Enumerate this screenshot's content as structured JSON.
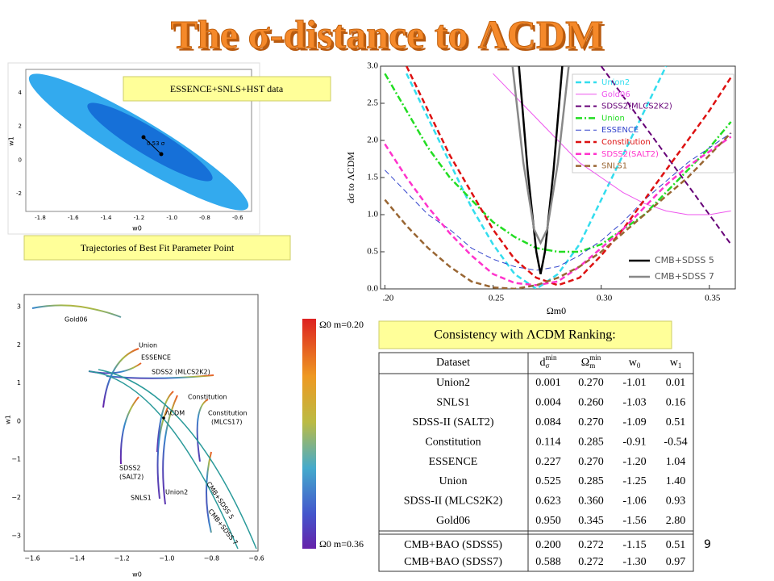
{
  "title": "The σ-distance to ΛCDM",
  "labels": {
    "essence_box": "ESSENCE+SNLS+HST data",
    "trajectories_box": "Trajectories of Best Fit Parameter Point",
    "ranking_box": "Consistency with ΛCDM Ranking:"
  },
  "page_number": "9",
  "ellipse_plot": {
    "xticks": [
      "-1.8",
      "-1.6",
      "-1.4",
      "-1.2",
      "-1.0",
      "-0.8",
      "-0.6"
    ],
    "yticks": [
      "4",
      "2",
      "0",
      "-2"
    ],
    "xlabel": "w0",
    "ylabel": "w1",
    "annotation": "0.53 σ"
  },
  "chart_data": {
    "type": "line",
    "xlabel": "Ωm0",
    "ylabel": "dσ to ΛCDM",
    "x": [
      0.2,
      0.21,
      0.22,
      0.23,
      0.24,
      0.25,
      0.26,
      0.27,
      0.28,
      0.29,
      0.3,
      0.31,
      0.32,
      0.33,
      0.34,
      0.35,
      0.36
    ],
    "xlim": [
      0.198,
      0.362
    ],
    "ylim": [
      0,
      3
    ],
    "xticks": [
      {
        "value": 0.2,
        "label": ".20"
      },
      {
        "value": 0.25,
        "label": "0.25"
      },
      {
        "value": 0.3,
        "label": "0.30"
      },
      {
        "value": 0.35,
        "label": "0.35"
      }
    ],
    "yticks": [
      {
        "value": 0,
        "label": "0.0"
      },
      {
        "value": 0.5,
        "label": "0.5"
      },
      {
        "value": 1,
        "label": "1.0"
      },
      {
        "value": 1.5,
        "label": "1.5"
      },
      {
        "value": 2,
        "label": "2.0"
      },
      {
        "value": 2.5,
        "label": "2.5"
      },
      {
        "value": 3,
        "label": "3.0"
      }
    ],
    "series": [
      {
        "name": "Union2",
        "color": "#33ddee",
        "style": "dashed",
        "linewidth": 2.5,
        "values": [
          null,
          2.9,
          2.3,
          1.7,
          1.1,
          0.6,
          0.2,
          0.0,
          0.2,
          0.6,
          1.2,
          1.8,
          2.4,
          3.0,
          null,
          null,
          null
        ]
      },
      {
        "name": "Gold06",
        "color": "#ee55ee",
        "style": "solid",
        "linewidth": 1,
        "values": [
          null,
          null,
          null,
          null,
          null,
          2.9,
          2.6,
          2.3,
          2.0,
          1.7,
          1.5,
          1.3,
          1.15,
          1.05,
          1.0,
          1.0,
          1.05
        ]
      },
      {
        "name": "SDSS2(MLCS2K2)",
        "color": "#660077",
        "style": "dashed",
        "linewidth": 2,
        "values": [
          null,
          null,
          null,
          null,
          null,
          null,
          null,
          null,
          null,
          null,
          3.0,
          2.6,
          2.2,
          1.8,
          1.4,
          1.0,
          0.6
        ]
      },
      {
        "name": "Union",
        "color": "#22dd22",
        "style": "dashdot",
        "linewidth": 2.5,
        "values": [
          2.9,
          2.4,
          1.9,
          1.5,
          1.2,
          0.9,
          0.7,
          0.55,
          0.5,
          0.5,
          0.6,
          0.8,
          1.0,
          1.3,
          1.6,
          1.9,
          2.25
        ]
      },
      {
        "name": "ESSENCE",
        "color": "#3344cc",
        "style": "dashed",
        "linewidth": 1,
        "values": [
          1.6,
          1.3,
          1.0,
          0.8,
          0.55,
          0.4,
          0.3,
          0.25,
          0.3,
          0.45,
          0.65,
          0.9,
          1.2,
          1.45,
          1.7,
          1.9,
          2.1
        ]
      },
      {
        "name": "Constitution",
        "color": "#dd1111",
        "style": "dashed",
        "linewidth": 2.5,
        "values": [
          null,
          3.0,
          2.4,
          1.8,
          1.3,
          0.8,
          0.4,
          0.15,
          0.05,
          0.15,
          0.45,
          0.8,
          1.2,
          1.6,
          2.0,
          2.4,
          2.85
        ]
      },
      {
        "name": "SDSS2(SALT2)",
        "color": "#ff33cc",
        "style": "dashed",
        "linewidth": 2.5,
        "values": [
          1.95,
          1.5,
          1.1,
          0.75,
          0.45,
          0.2,
          0.08,
          0.05,
          0.1,
          0.3,
          0.55,
          0.8,
          1.1,
          1.4,
          1.65,
          1.85,
          2.05
        ]
      },
      {
        "name": "SNLS1",
        "color": "#996633",
        "style": "dashed",
        "linewidth": 2.5,
        "values": [
          1.2,
          0.85,
          0.55,
          0.3,
          0.1,
          0.02,
          0.0,
          0.05,
          0.15,
          0.3,
          0.5,
          0.75,
          1.0,
          1.25,
          1.5,
          1.8,
          2.1
        ]
      },
      {
        "name": "CMB+SDSS 5",
        "color": "#000000",
        "style": "solid",
        "linewidth": 2.5,
        "x": [
          0.262,
          0.266,
          0.27,
          0.272,
          0.274,
          0.278,
          0.282
        ],
        "values": [
          3.0,
          1.6,
          0.5,
          0.2,
          0.5,
          1.6,
          3.0
        ]
      },
      {
        "name": "CMB+SDSS 7",
        "color": "#888888",
        "style": "solid",
        "linewidth": 2.5,
        "x": [
          0.259,
          0.264,
          0.269,
          0.272,
          0.275,
          0.28,
          0.285
        ],
        "values": [
          3.0,
          1.7,
          0.8,
          0.62,
          0.8,
          1.7,
          3.0
        ]
      }
    ]
  },
  "trajectory_plot": {
    "xticks": [
      "−1.6",
      "−1.4",
      "−1.2",
      "−1.0",
      "−0.8",
      "−0.6"
    ],
    "yticks": [
      "3",
      "2",
      "1",
      "0",
      "−1",
      "−2",
      "−3"
    ],
    "xlabel": "w0",
    "ylabel": "w1",
    "curve_labels": [
      "Gold06",
      "Union",
      "ESSENCE",
      "SDSS2 (MLCS2K2)",
      "Constitution",
      "ΛCDM",
      "Constitution",
      "(MLCS17)",
      "SDSS2",
      "(SALT2)",
      "SNLS1",
      "Union2",
      "CMB+SDSS 5",
      "CMB+SDSS 7"
    ],
    "colorbar_top": "Ω0 m=0.20",
    "colorbar_bottom": "Ω0 m=0.36"
  },
  "table": {
    "header": [
      {
        "base": "Dataset"
      },
      {
        "base": "d",
        "sub": "σ",
        "sup": "min"
      },
      {
        "base": "Ω",
        "sub": "m",
        "sup": "min"
      },
      {
        "base": "w",
        "sub": "0"
      },
      {
        "base": "w",
        "sub": "1"
      }
    ],
    "rows": [
      [
        "Union2",
        "0.001",
        "0.270",
        "-1.01",
        "0.01"
      ],
      [
        "SNLS1",
        "0.004",
        "0.260",
        "-1.03",
        "0.16"
      ],
      [
        "SDSS-II (SALT2)",
        "0.084",
        "0.270",
        "-1.09",
        "0.51"
      ],
      [
        "Constitution",
        "0.114",
        "0.285",
        "-0.91",
        "-0.54"
      ],
      [
        "ESSENCE",
        "0.227",
        "0.270",
        "-1.20",
        "1.04"
      ],
      [
        "Union",
        "0.525",
        "0.285",
        "-1.25",
        "1.40"
      ],
      [
        "SDSS-II (MLCS2K2)",
        "0.623",
        "0.360",
        "-1.06",
        "0.93"
      ],
      [
        "Gold06",
        "0.950",
        "0.345",
        "-1.56",
        "2.80"
      ]
    ],
    "cmb_rows": [
      [
        "CMB+BAO (SDSS5)",
        "0.200",
        "0.272",
        "-1.15",
        "0.51"
      ],
      [
        "CMB+BAO (SDSS7)",
        "0.588",
        "0.272",
        "-1.30",
        "0.97"
      ]
    ]
  }
}
